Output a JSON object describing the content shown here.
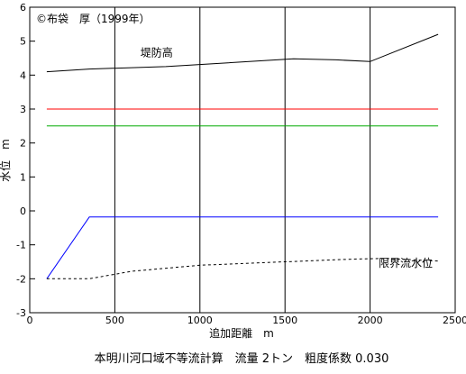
{
  "chart_data": {
    "type": "line",
    "title": "",
    "copyright": "©布袋　厚（1999年）",
    "caption": "本明川河口域不等流計算　流量 2トン　粗度係数 0.030",
    "xlabel": "追加距離　m",
    "ylabel": "水位　m",
    "xlim": [
      0,
      2500
    ],
    "ylim": [
      -3,
      6
    ],
    "xticks": [
      0,
      500,
      1000,
      1500,
      2000,
      2500
    ],
    "yticks": [
      -3,
      -2,
      -1,
      0,
      1,
      2,
      3,
      4,
      5,
      6
    ],
    "grid": "vertical",
    "series": [
      {
        "name": "堤防高",
        "color": "#000000",
        "style": "solid",
        "x": [
          100,
          350,
          800,
          1550,
          1800,
          2000,
          2400
        ],
        "y": [
          4.1,
          4.18,
          4.25,
          4.48,
          4.45,
          4.4,
          5.2
        ]
      },
      {
        "name": "",
        "color": "#ff0000",
        "style": "solid",
        "x": [
          100,
          2400
        ],
        "y": [
          3.0,
          3.0
        ]
      },
      {
        "name": "",
        "color": "#00aa00",
        "style": "solid",
        "x": [
          100,
          2400
        ],
        "y": [
          2.5,
          2.5
        ]
      },
      {
        "name": "",
        "color": "#0000ff",
        "style": "solid",
        "x": [
          100,
          350,
          2400
        ],
        "y": [
          -2.0,
          -0.18,
          -0.18
        ]
      },
      {
        "name": "限界流水位",
        "color": "#000000",
        "style": "dashed",
        "x": [
          100,
          350,
          600,
          1000,
          1500,
          1900,
          2100,
          2400
        ],
        "y": [
          -2.0,
          -2.0,
          -1.78,
          -1.6,
          -1.5,
          -1.42,
          -1.4,
          -1.48
        ]
      }
    ],
    "annotations": [
      {
        "text": "堤防高",
        "x": 650,
        "y": 4.55
      },
      {
        "text": "限界流水位",
        "x": 2050,
        "y": -1.65
      }
    ]
  }
}
